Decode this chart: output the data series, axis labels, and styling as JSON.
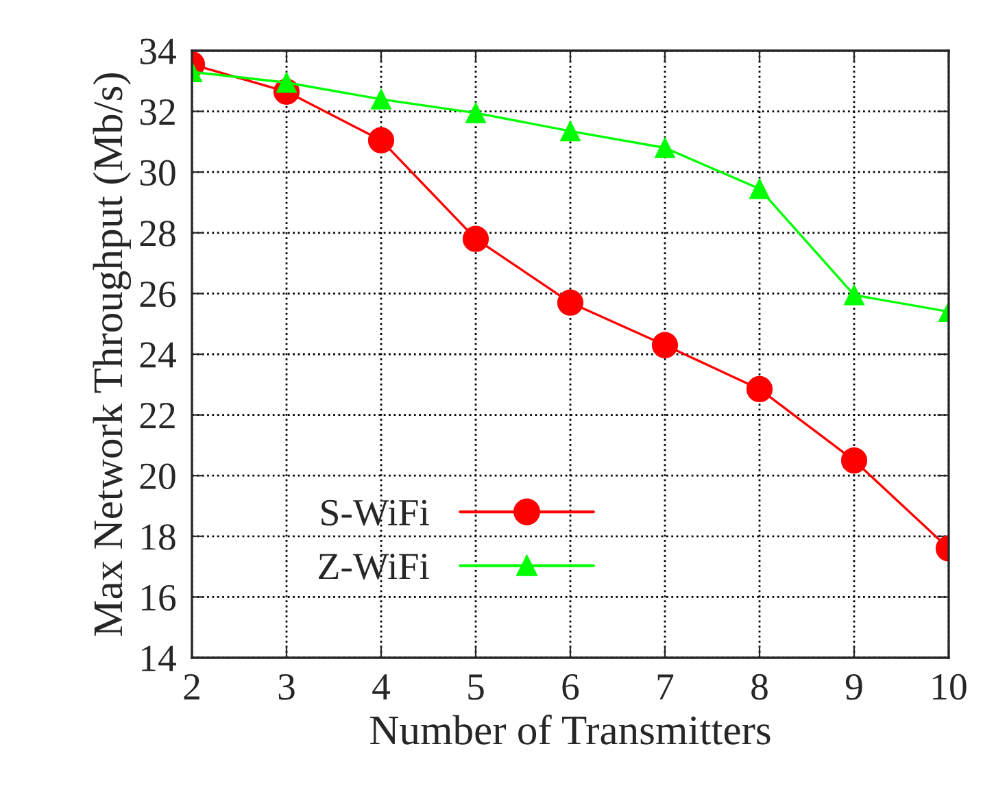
{
  "chart_data": {
    "type": "line",
    "xlabel": "Number of Transmitters",
    "ylabel": "Max Network Throughput (Mb/s)",
    "x": [
      2,
      3,
      4,
      5,
      6,
      7,
      8,
      9,
      10
    ],
    "series": [
      {
        "name": "S-WiFi",
        "color": "#ff0000",
        "marker": "circle",
        "values": [
          33.55,
          32.65,
          31.05,
          27.8,
          25.7,
          24.3,
          22.85,
          20.5,
          17.6
        ]
      },
      {
        "name": "Z-WiFi",
        "color": "#00ff00",
        "marker": "triangle",
        "values": [
          33.3,
          32.95,
          32.4,
          31.95,
          31.35,
          30.8,
          29.45,
          25.95,
          25.4
        ]
      }
    ],
    "xlim": [
      2,
      10
    ],
    "xticks": [
      2,
      3,
      4,
      5,
      6,
      7,
      8,
      9,
      10
    ],
    "ylim": [
      14,
      34
    ],
    "yticks": [
      14,
      16,
      18,
      20,
      22,
      24,
      26,
      28,
      30,
      32,
      34
    ],
    "grid": true,
    "legend": "bottom left",
    "line_style": "solid"
  }
}
